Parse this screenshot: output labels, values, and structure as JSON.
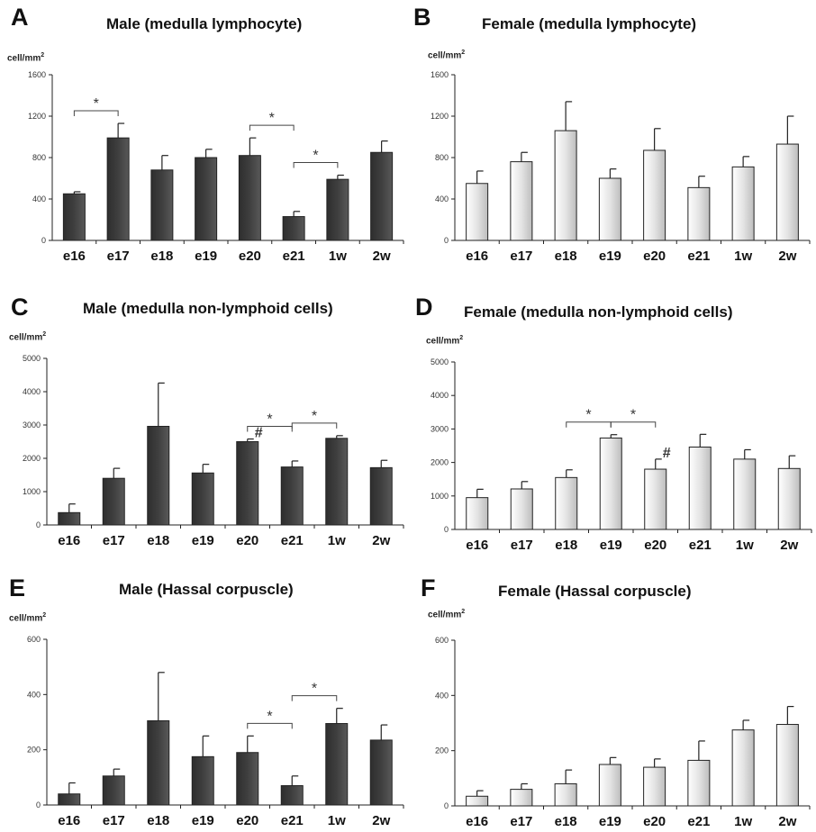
{
  "figure": {
    "colors": {
      "male_bar": "#3f3f3f",
      "female_bar": "#e4e4e4",
      "axis": "#222222"
    },
    "panels": [
      {
        "letter": "A",
        "title": "Male (medulla lymphocyte)",
        "unit": "cell/mm",
        "unit_sup": "2"
      },
      {
        "letter": "B",
        "title": "Female (medulla lymphocyte)",
        "unit": "cell/mm",
        "unit_sup": "2"
      },
      {
        "letter": "C",
        "title": "Male (medulla non-lymphoid cells)",
        "unit": "cell/mm",
        "unit_sup": "2"
      },
      {
        "letter": "D",
        "title": "Female (medulla non-lymphoid cells)",
        "unit": "cell/mm",
        "unit_sup": "2"
      },
      {
        "letter": "E",
        "title": "Male (Hassal corpuscle)",
        "unit": "cell/mm",
        "unit_sup": "2"
      },
      {
        "letter": "F",
        "title": "Female (Hassal corpuscle)",
        "unit": "cell/mm",
        "unit_sup": "2"
      }
    ]
  },
  "chart_data": [
    {
      "type": "bar",
      "panel": "A",
      "title": "Male (medulla lymphocyte)",
      "ylabel": "cell/mm2",
      "xlabel": "",
      "categories": [
        "e16",
        "e17",
        "e18",
        "e19",
        "e20",
        "e21",
        "1w",
        "2w"
      ],
      "values": [
        450,
        990,
        680,
        800,
        820,
        230,
        590,
        850
      ],
      "errors": [
        20,
        140,
        140,
        80,
        170,
        50,
        40,
        110
      ],
      "ylim": [
        0,
        1600
      ],
      "yticks": [
        0,
        400,
        800,
        1200,
        1600
      ],
      "significance": [
        {
          "from": "e16",
          "to": "e17",
          "label": "*"
        },
        {
          "from": "e20",
          "to": "e21",
          "label": "*"
        },
        {
          "from": "e21",
          "to": "1w",
          "label": "*"
        }
      ],
      "annotations": []
    },
    {
      "type": "bar",
      "panel": "B",
      "title": "Female (medulla lymphocyte)",
      "ylabel": "cell/mm2",
      "xlabel": "",
      "categories": [
        "e16",
        "e17",
        "e18",
        "e19",
        "e20",
        "e21",
        "1w",
        "2w"
      ],
      "values": [
        550,
        760,
        1060,
        600,
        870,
        510,
        710,
        930
      ],
      "errors": [
        120,
        90,
        280,
        90,
        210,
        110,
        100,
        270
      ],
      "ylim": [
        0,
        1600
      ],
      "yticks": [
        0,
        400,
        800,
        1200,
        1600
      ],
      "significance": [],
      "annotations": []
    },
    {
      "type": "bar",
      "panel": "C",
      "title": "Male (medulla non-lymphoid cells)",
      "ylabel": "cell/mm2",
      "xlabel": "",
      "categories": [
        "e16",
        "e17",
        "e18",
        "e19",
        "e20",
        "e21",
        "1w",
        "2w"
      ],
      "values": [
        370,
        1400,
        2960,
        1560,
        2500,
        1740,
        2600,
        1720
      ],
      "errors": [
        260,
        300,
        1300,
        260,
        80,
        180,
        80,
        220
      ],
      "ylim": [
        0,
        5000
      ],
      "yticks": [
        0,
        1000,
        2000,
        3000,
        4000,
        5000
      ],
      "significance": [
        {
          "from": "e20",
          "to": "e21",
          "label": "*"
        },
        {
          "from": "e21",
          "to": "1w",
          "label": "*"
        }
      ],
      "annotations": [
        {
          "category": "e20",
          "label": "#"
        }
      ]
    },
    {
      "type": "bar",
      "panel": "D",
      "title": "Female (medulla non-lymphoid cells)",
      "ylabel": "cell/mm2",
      "xlabel": "",
      "categories": [
        "e16",
        "e17",
        "e18",
        "e19",
        "e20",
        "e21",
        "1w",
        "2w"
      ],
      "values": [
        950,
        1210,
        1550,
        2730,
        1800,
        2460,
        2100,
        1820
      ],
      "errors": [
        250,
        220,
        230,
        100,
        300,
        380,
        280,
        380
      ],
      "ylim": [
        0,
        5000
      ],
      "yticks": [
        0,
        1000,
        2000,
        3000,
        4000,
        5000
      ],
      "significance": [
        {
          "from": "e18",
          "to": "e19",
          "label": "*"
        },
        {
          "from": "e19",
          "to": "e20",
          "label": "*"
        }
      ],
      "annotations": [
        {
          "category": "e20",
          "label": "#"
        }
      ]
    },
    {
      "type": "bar",
      "panel": "E",
      "title": "Male (Hassal corpuscle)",
      "ylabel": "cell/mm2",
      "xlabel": "",
      "categories": [
        "e16",
        "e17",
        "e18",
        "e19",
        "e20",
        "e21",
        "1w",
        "2w"
      ],
      "values": [
        40,
        105,
        305,
        175,
        190,
        70,
        295,
        235
      ],
      "errors": [
        40,
        25,
        175,
        75,
        60,
        35,
        55,
        55
      ],
      "ylim": [
        0,
        600
      ],
      "yticks": [
        0,
        200,
        400,
        600
      ],
      "significance": [
        {
          "from": "e20",
          "to": "e21",
          "label": "*"
        },
        {
          "from": "e21",
          "to": "1w",
          "label": "*"
        }
      ],
      "annotations": []
    },
    {
      "type": "bar",
      "panel": "F",
      "title": "Female (Hassal corpuscle)",
      "ylabel": "cell/mm2",
      "xlabel": "",
      "categories": [
        "e16",
        "e17",
        "e18",
        "e19",
        "e20",
        "e21",
        "1w",
        "2w"
      ],
      "values": [
        35,
        60,
        80,
        150,
        140,
        165,
        275,
        295
      ],
      "errors": [
        20,
        20,
        50,
        25,
        30,
        70,
        35,
        65
      ],
      "ylim": [
        0,
        600
      ],
      "yticks": [
        0,
        200,
        400,
        600
      ],
      "significance": [],
      "annotations": []
    }
  ]
}
